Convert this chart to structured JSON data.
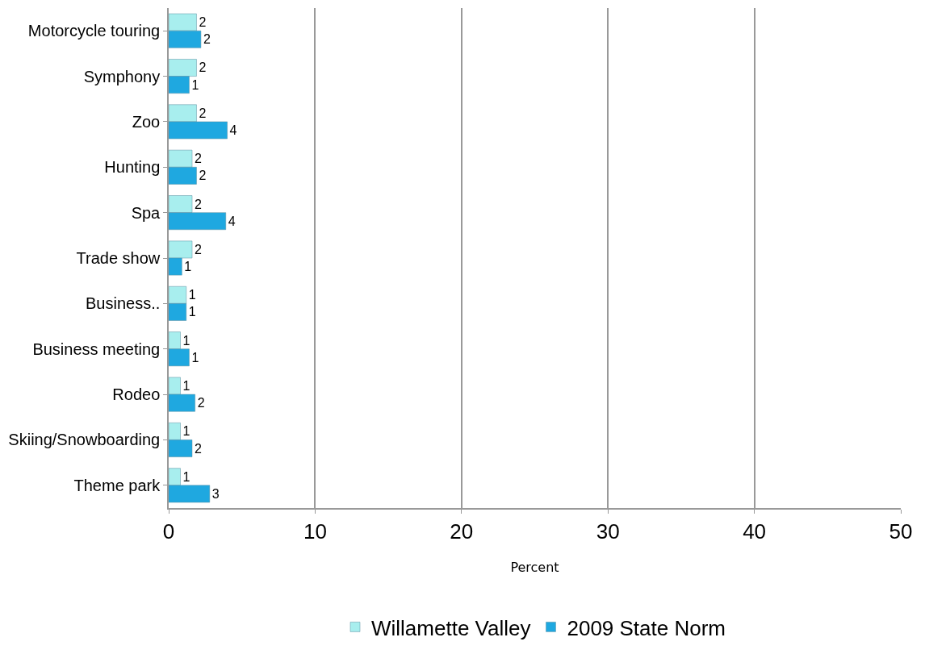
{
  "chart_data": {
    "type": "bar",
    "orientation": "horizontal",
    "xlabel": "Percent",
    "categories": [
      "Motorcycle touring",
      "Symphony",
      "Zoo",
      "Hunting",
      "Spa",
      "Trade show",
      "Business..",
      "Business meeting",
      "Rodeo",
      "Skiing/Snowboarding",
      "Theme park"
    ],
    "series": [
      {
        "name": "Willamette Valley",
        "color": "#a8eeee",
        "values": [
          1.9,
          1.9,
          1.9,
          1.6,
          1.6,
          1.6,
          1.2,
          0.8,
          0.8,
          0.8,
          0.8
        ],
        "value_labels": [
          "2",
          "2",
          "2",
          "2",
          "2",
          "2",
          "1",
          "1",
          "1",
          "1",
          "1"
        ]
      },
      {
        "name": "2009 State Norm",
        "color": "#1fa8e0",
        "values": [
          2.2,
          1.4,
          4.0,
          1.9,
          3.9,
          0.9,
          1.2,
          1.4,
          1.8,
          1.6,
          2.8
        ],
        "value_labels": [
          "2",
          "1",
          "4",
          "2",
          "4",
          "1",
          "1",
          "1",
          "2",
          "2",
          "3"
        ]
      }
    ],
    "xlim": [
      0,
      50
    ],
    "xticks": [
      0,
      10,
      20,
      30,
      40,
      50
    ],
    "grid": "x",
    "legend": "bottom"
  }
}
